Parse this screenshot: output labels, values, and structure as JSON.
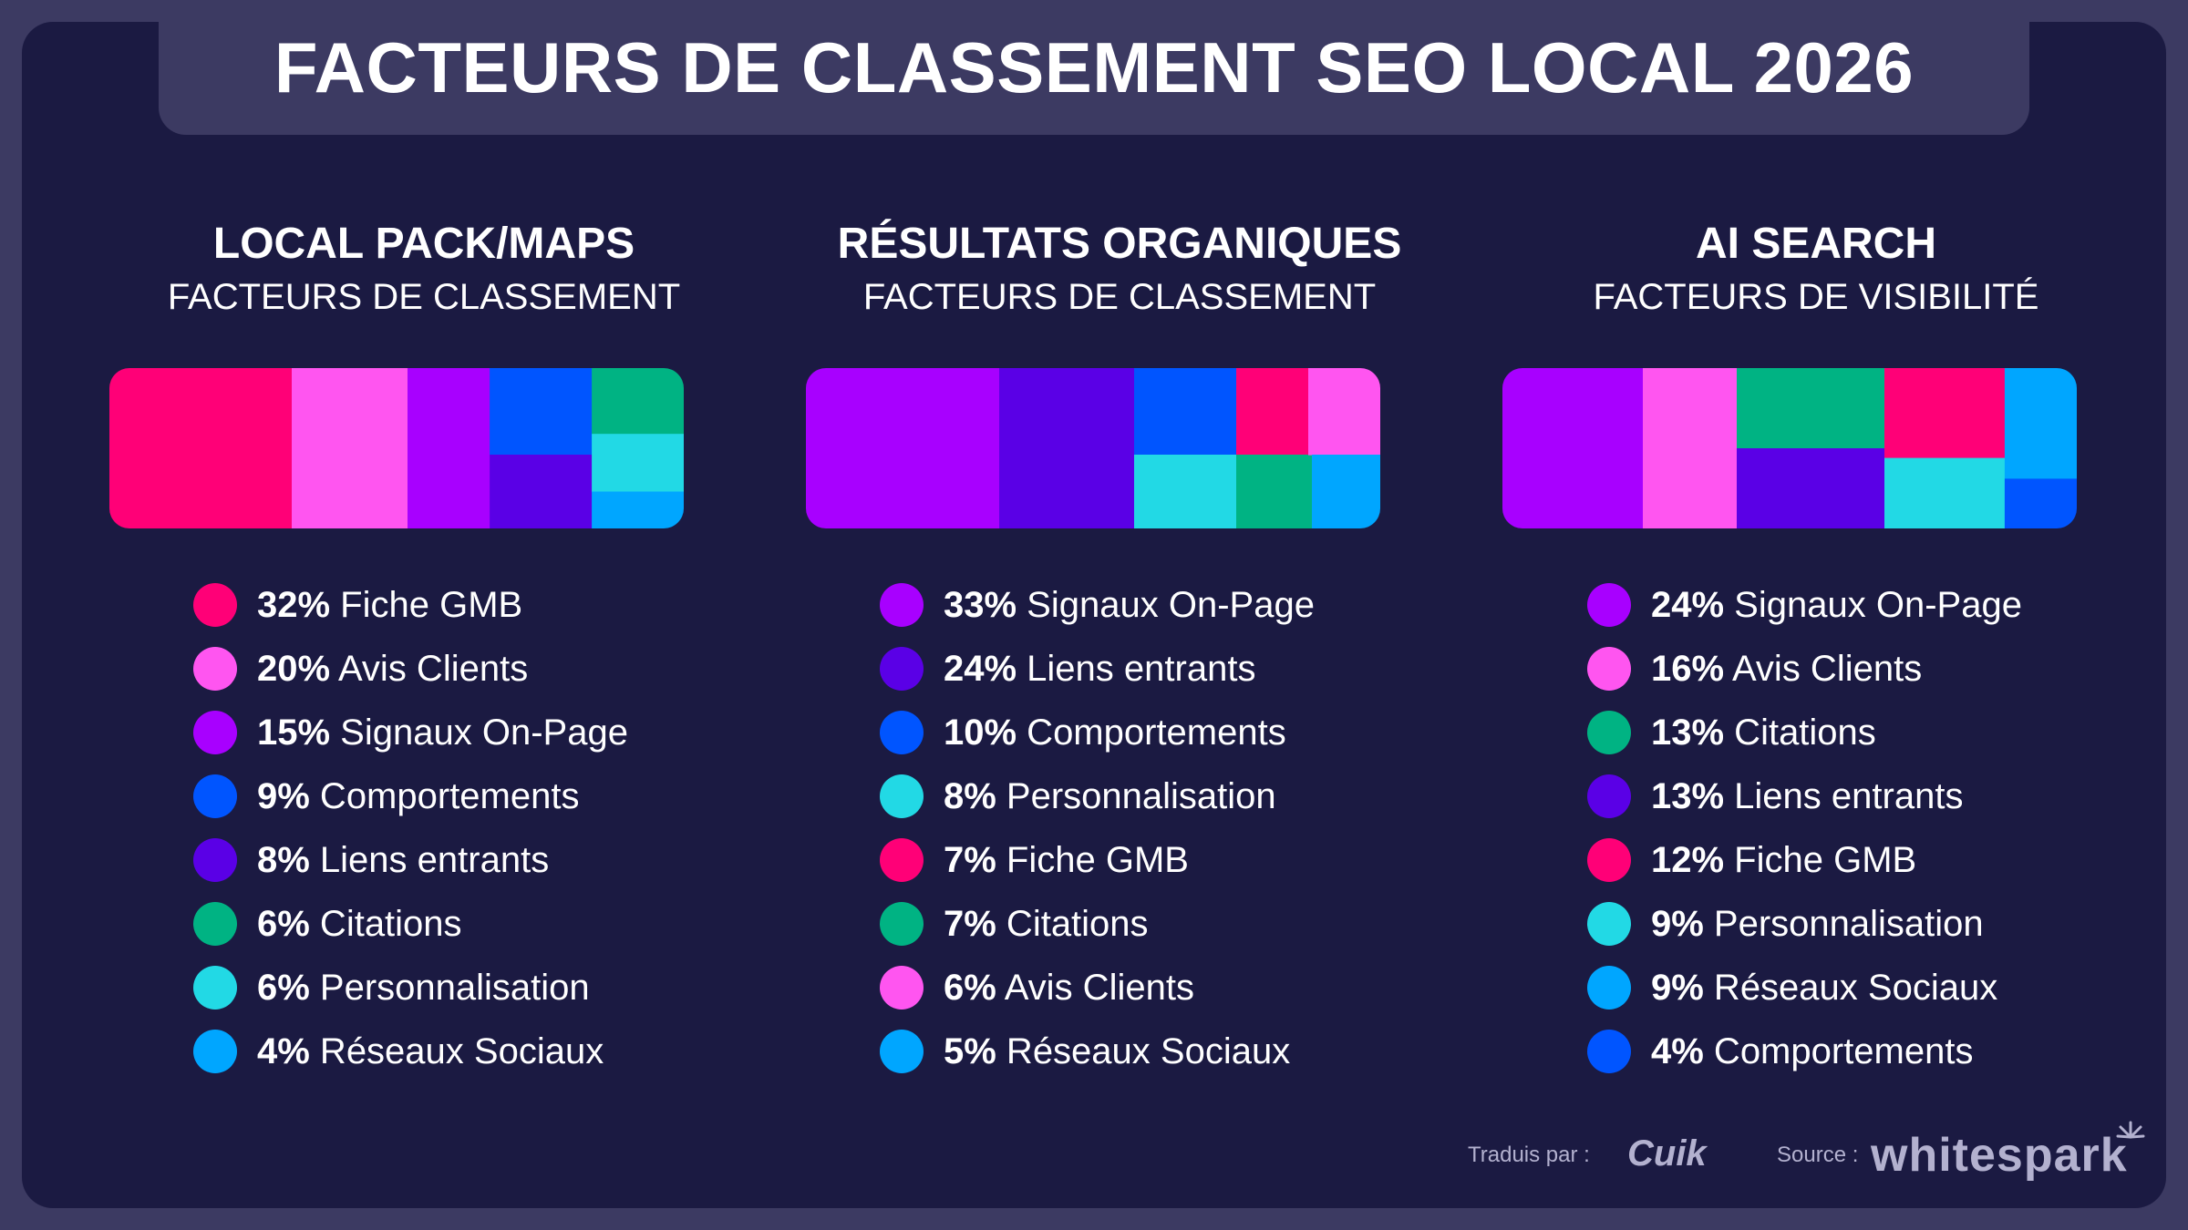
{
  "title": "FACTEURS DE CLASSEMENT SEO LOCAL 2026",
  "colors": {
    "fiche_gmb": "#ff0077",
    "avis_clients": "#ff55f0",
    "signaux_on_page": "#a800ff",
    "comportements": "#0055ff",
    "liens_entrants": "#5a00e6",
    "citations": "#00b383",
    "personnalisation": "#22d9e5",
    "reseaux_sociaux": "#00a6ff"
  },
  "chart_data": [
    {
      "type": "treemap",
      "title": "LOCAL PACK/MAPS",
      "subtitle": "FACTEURS DE CLASSEMENT",
      "unit": "%",
      "items": [
        {
          "label": "Fiche GMB",
          "value": 32,
          "value_text": "32%",
          "color": "#ff0077"
        },
        {
          "label": "Avis Clients",
          "value": 20,
          "value_text": "20%",
          "color": "#ff55f0"
        },
        {
          "label": "Signaux On-Page",
          "value": 15,
          "value_text": "15%",
          "color": "#a800ff"
        },
        {
          "label": "Comportements",
          "value": 9,
          "value_text": "9%",
          "color": "#0055ff"
        },
        {
          "label": "Liens entrants",
          "value": 8,
          "value_text": "8%",
          "color": "#5a00e6"
        },
        {
          "label": "Citations",
          "value": 6,
          "value_text": "6%",
          "color": "#00b383"
        },
        {
          "label": "Personnalisation",
          "value": 6,
          "value_text": "6%",
          "color": "#22d9e5"
        },
        {
          "label": "Réseaux Sociaux",
          "value": 4,
          "value_text": "4%",
          "color": "#00a6ff"
        }
      ]
    },
    {
      "type": "treemap",
      "title": "RÉSULTATS ORGANIQUES",
      "subtitle": "FACTEURS DE CLASSEMENT",
      "unit": "%",
      "items": [
        {
          "label": "Signaux On-Page",
          "value": 33,
          "value_text": "33%",
          "color": "#a800ff"
        },
        {
          "label": "Liens entrants",
          "value": 24,
          "value_text": "24%",
          "color": "#5a00e6"
        },
        {
          "label": "Comportements",
          "value": 10,
          "value_text": "10%",
          "color": "#0055ff"
        },
        {
          "label": "Personnalisation",
          "value": 8,
          "value_text": "8%",
          "color": "#22d9e5"
        },
        {
          "label": "Fiche GMB",
          "value": 7,
          "value_text": "7%",
          "color": "#ff0077"
        },
        {
          "label": "Citations",
          "value": 7,
          "value_text": "7%",
          "color": "#00b383"
        },
        {
          "label": "Avis Clients",
          "value": 6,
          "value_text": "6%",
          "color": "#ff55f0"
        },
        {
          "label": "Réseaux Sociaux",
          "value": 5,
          "value_text": "5%",
          "color": "#00a6ff"
        }
      ]
    },
    {
      "type": "treemap",
      "title": "AI SEARCH",
      "subtitle": "FACTEURS DE VISIBILITÉ",
      "unit": "%",
      "items": [
        {
          "label": "Signaux On-Page",
          "value": 24,
          "value_text": "24%",
          "color": "#a800ff"
        },
        {
          "label": "Avis Clients",
          "value": 16,
          "value_text": "16%",
          "color": "#ff55f0"
        },
        {
          "label": "Citations",
          "value": 13,
          "value_text": "13%",
          "color": "#00b383"
        },
        {
          "label": "Liens entrants",
          "value": 13,
          "value_text": "13%",
          "color": "#5a00e6"
        },
        {
          "label": "Fiche GMB",
          "value": 12,
          "value_text": "12%",
          "color": "#ff0077"
        },
        {
          "label": "Personnalisation",
          "value": 9,
          "value_text": "9%",
          "color": "#22d9e5"
        },
        {
          "label": "Réseaux Sociaux",
          "value": 9,
          "value_text": "9%",
          "color": "#00a6ff"
        },
        {
          "label": "Comportements",
          "value": 4,
          "value_text": "4%",
          "color": "#0055ff"
        }
      ]
    }
  ],
  "footer": {
    "translated_label": "Traduis par :",
    "translator": "Cuik",
    "source_label": "Source :",
    "source": "whitespark",
    "source_icon": "spark-icon"
  }
}
